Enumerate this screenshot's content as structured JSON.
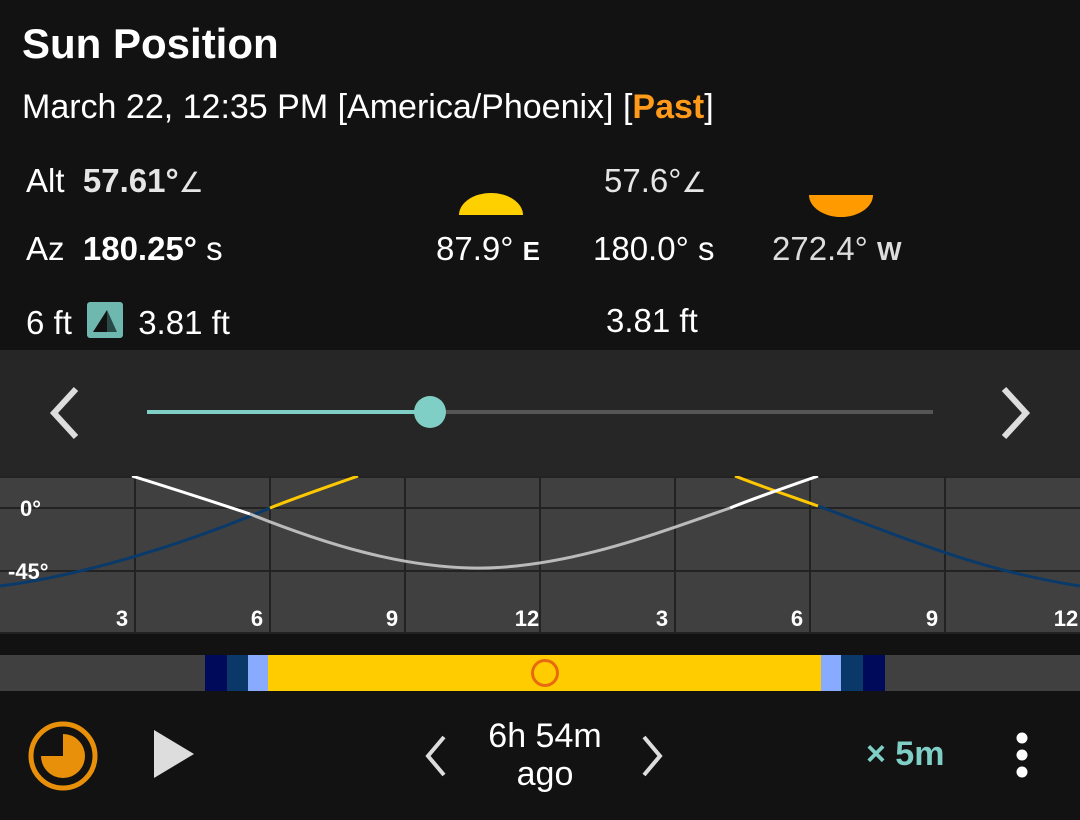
{
  "header": {
    "title": "Sun Position",
    "datetime": "March 22, 12:35 PM [America/Phoenix] [",
    "status": "Past",
    "close_bracket": "]"
  },
  "current": {
    "alt_label": "Alt",
    "alt_value": "57.61°",
    "az_label": "Az",
    "az_value": "180.25°",
    "az_dir": "s",
    "object_height": "6 ft",
    "shadow_length": "3.81 ft"
  },
  "events": {
    "rise_azimuth": "87.9°",
    "rise_dir": "E",
    "noon_altitude": "57.6°",
    "noon_azimuth": "180.0°",
    "noon_dir": "s",
    "noon_shadow": "3.81 ft",
    "set_azimuth": "272.4°",
    "set_dir": "W"
  },
  "slider": {
    "value_fraction": 0.36
  },
  "chart_data": {
    "type": "line",
    "y_ticks": [
      "0°",
      "-45°"
    ],
    "x_ticks": [
      "3",
      "6",
      "9",
      "12",
      "3",
      "6",
      "9",
      "12"
    ],
    "colors": {
      "daylight": "#ffc800",
      "night": "#0a3a6a",
      "day_alt": "#ffffff",
      "night_alt": "#bbbbbb"
    }
  },
  "daybar": {
    "colors": {
      "day": "#ffcc00",
      "civil": "#88aaff",
      "nautical": "#0a3868",
      "astronomical": "#000a5a",
      "marker": "#e86a10"
    }
  },
  "footer": {
    "ago_line1": "6h 54m",
    "ago_line2": "ago",
    "speed": "× 5m"
  }
}
